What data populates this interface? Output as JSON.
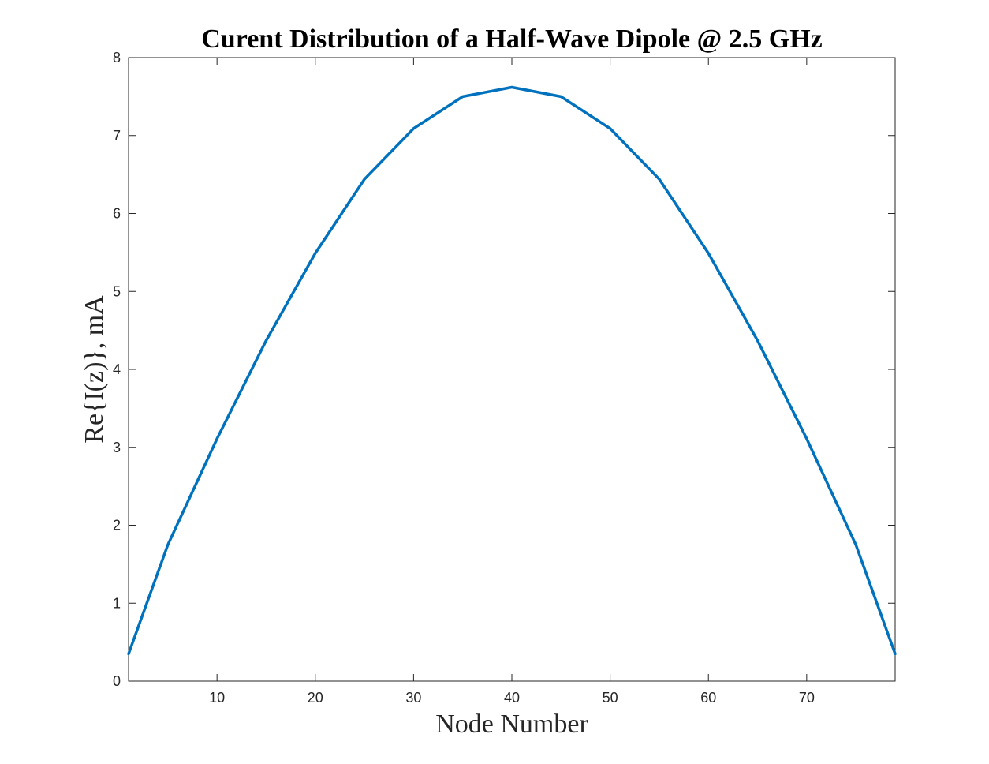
{
  "chart_data": {
    "type": "line",
    "title": "Curent Distribution of a Half-Wave Dipole @ 2.5 GHz",
    "xlabel": "Node Number",
    "ylabel": "Re{I(z)}, mA",
    "xlim": [
      1,
      79
    ],
    "ylim": [
      0,
      8
    ],
    "xticks": [
      10,
      20,
      30,
      40,
      50,
      60,
      70
    ],
    "yticks": [
      0,
      1,
      2,
      3,
      4,
      5,
      6,
      7,
      8
    ],
    "grid": false,
    "box": true,
    "line_color": "#0072BD",
    "series": [
      {
        "x": [
          1,
          5,
          10,
          15,
          20,
          25,
          30,
          35,
          40,
          45,
          50,
          55,
          60,
          65,
          70,
          75,
          79
        ],
        "y": [
          0.35,
          1.75,
          3.11,
          4.37,
          5.49,
          6.44,
          7.09,
          7.5,
          7.62,
          7.5,
          7.09,
          6.44,
          5.49,
          4.37,
          3.11,
          1.75,
          0.35
        ]
      }
    ]
  }
}
